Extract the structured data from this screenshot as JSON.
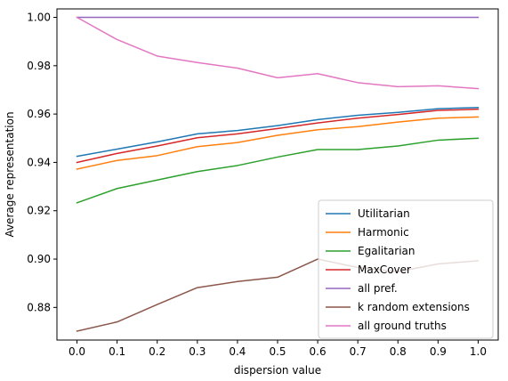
{
  "chart_data": {
    "type": "line",
    "title": "",
    "xlabel": "dispersion value",
    "ylabel": "Average representation",
    "xlim": [
      -0.05,
      1.05
    ],
    "ylim": [
      0.8665,
      1.0035
    ],
    "x": [
      0.0,
      0.1,
      0.2,
      0.3,
      0.4,
      0.5,
      0.6,
      0.7,
      0.8,
      0.9,
      1.0
    ],
    "x_ticks": [
      "0.0",
      "0.1",
      "0.2",
      "0.3",
      "0.4",
      "0.5",
      "0.6",
      "0.7",
      "0.8",
      "0.9",
      "1.0"
    ],
    "y_ticks": [
      "0.88",
      "0.90",
      "0.92",
      "0.94",
      "0.96",
      "0.98",
      "1.00"
    ],
    "y_tick_values": [
      0.88,
      0.9,
      0.92,
      0.94,
      0.96,
      0.98,
      1.0
    ],
    "grid": false,
    "legend_position": "lower-right",
    "series": [
      {
        "name": "Utilitarian",
        "color": "#1f77b4",
        "values": [
          0.9425,
          0.9455,
          0.9485,
          0.9518,
          0.9532,
          0.9552,
          0.9577,
          0.9595,
          0.9607,
          0.9622,
          0.9627
        ]
      },
      {
        "name": "Harmonic",
        "color": "#ff7f0e",
        "values": [
          0.9372,
          0.9408,
          0.9428,
          0.9465,
          0.9482,
          0.9512,
          0.9535,
          0.9548,
          0.9567,
          0.9583,
          0.9588
        ]
      },
      {
        "name": "Egalitarian",
        "color": "#2ca02c",
        "values": [
          0.9233,
          0.9292,
          0.9327,
          0.9362,
          0.9387,
          0.9422,
          0.9453,
          0.9453,
          0.9468,
          0.9492,
          0.95
        ]
      },
      {
        "name": "MaxCover",
        "color": "#d62728",
        "values": [
          0.94,
          0.9437,
          0.9468,
          0.9502,
          0.9518,
          0.954,
          0.9563,
          0.9583,
          0.9598,
          0.9615,
          0.962
        ]
      },
      {
        "name": "all pref.",
        "color": "#9467bd",
        "values": [
          1.0,
          1.0,
          1.0,
          1.0,
          1.0,
          1.0,
          1.0,
          1.0,
          1.0,
          1.0,
          1.0
        ]
      },
      {
        "name": "k random extensions",
        "color": "#8c564b",
        "values": [
          0.8702,
          0.874,
          0.8812,
          0.8882,
          0.8907,
          0.8925,
          0.9,
          0.8965,
          0.8948,
          0.898,
          0.8993
        ]
      },
      {
        "name": "all ground truths",
        "color": "#e377c2",
        "values": [
          1.0,
          0.9908,
          0.984,
          0.9813,
          0.979,
          0.975,
          0.9767,
          0.973,
          0.9713,
          0.9717,
          0.9705
        ]
      }
    ]
  }
}
